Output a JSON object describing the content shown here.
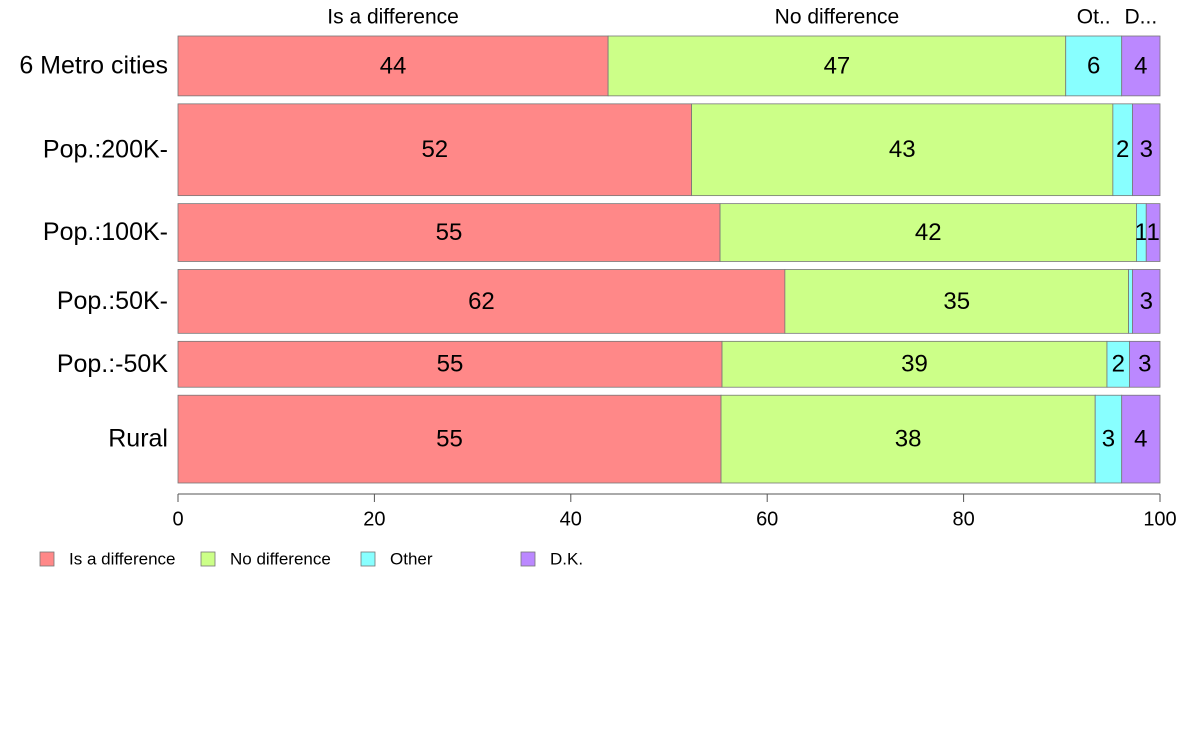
{
  "chart_data": {
    "type": "bar",
    "orientation": "horizontal",
    "stacked": true,
    "categories": [
      "6 Metro cities",
      "Pop.:200K-",
      "Pop.:100K-",
      "Pop.:50K-",
      "Pop.:-50K",
      "Rural"
    ],
    "category_weights": [
      30,
      46,
      29,
      32,
      23,
      44
    ],
    "series": [
      {
        "name": "Is a difference",
        "color": "#ff8888",
        "values": [
          43.8,
          52.3,
          55.2,
          61.8,
          55.4,
          55.3
        ],
        "labels": [
          "44",
          "52",
          "55",
          "62",
          "55",
          "55"
        ]
      },
      {
        "name": "No difference",
        "color": "#ccff88",
        "values": [
          46.6,
          42.9,
          42.4,
          35.0,
          39.2,
          38.1
        ],
        "labels": [
          "47",
          "43",
          "42",
          "35",
          "39",
          "38"
        ]
      },
      {
        "name": "Other",
        "color": "#88ffff",
        "values": [
          5.7,
          2.0,
          1.0,
          0.4,
          2.3,
          2.7
        ],
        "labels": [
          "6",
          "2",
          "1",
          "",
          "2",
          "3"
        ]
      },
      {
        "name": "D.K.",
        "color": "#bb88ff",
        "values": [
          3.9,
          2.8,
          1.4,
          2.8,
          3.1,
          3.9
        ],
        "labels": [
          "4",
          "3",
          "1",
          "3",
          "3",
          "4"
        ]
      }
    ],
    "top_labels": [
      "Is a difference",
      "No difference",
      "Ot..",
      "D..."
    ],
    "xlim": [
      0,
      100
    ],
    "x_ticks": [
      0,
      20,
      40,
      60,
      80,
      100
    ],
    "grid": false,
    "legend": {
      "position": "bottom-left",
      "labels": [
        "Is a difference",
        "No difference",
        "Other",
        "D.K."
      ]
    }
  }
}
